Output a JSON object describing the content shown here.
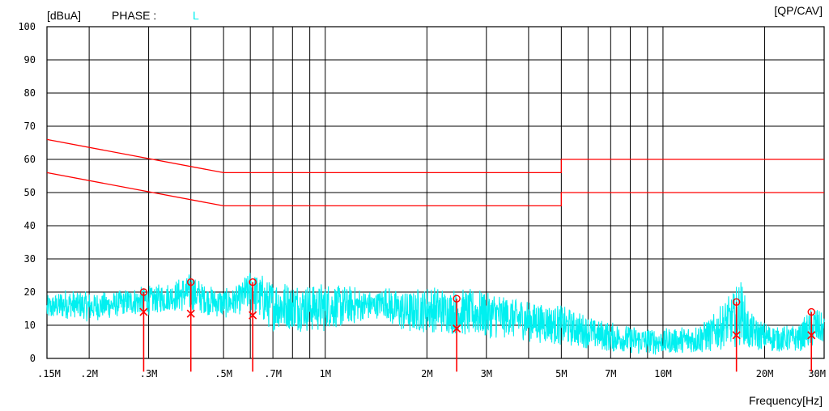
{
  "chart_data": {
    "type": "line",
    "unit_label": "[dBuA]",
    "phase_label": "PHASE :",
    "phase_value": "L",
    "detector_label": "[QP/CAV]",
    "xlabel": "Frequency[Hz]",
    "x_scale": "log",
    "xlim_mhz": [
      0.15,
      30
    ],
    "ylim": [
      0,
      100
    ],
    "grid": true,
    "y_ticks": [
      "100",
      "90",
      "80",
      "70",
      "60",
      "50",
      "40",
      "30",
      "20",
      "10",
      "0"
    ],
    "x_tick_labels": [
      {
        "mhz": 0.15,
        "label": ".15M"
      },
      {
        "mhz": 0.2,
        "label": ".2M"
      },
      {
        "mhz": 0.3,
        "label": ".3M"
      },
      {
        "mhz": 0.5,
        "label": ".5M"
      },
      {
        "mhz": 0.7,
        "label": ".7M"
      },
      {
        "mhz": 1,
        "label": "1M"
      },
      {
        "mhz": 2,
        "label": "2M"
      },
      {
        "mhz": 3,
        "label": "3M"
      },
      {
        "mhz": 5,
        "label": "5M"
      },
      {
        "mhz": 7,
        "label": "7M"
      },
      {
        "mhz": 10,
        "label": "10M"
      },
      {
        "mhz": 20,
        "label": "20M"
      },
      {
        "mhz": 30,
        "label": "30M"
      }
    ],
    "limit_lines": [
      {
        "points": [
          [
            0.15,
            66
          ],
          [
            0.5,
            56
          ],
          [
            5,
            56
          ],
          [
            5,
            60
          ],
          [
            30,
            60
          ]
        ]
      },
      {
        "points": [
          [
            0.15,
            56
          ],
          [
            0.5,
            46
          ],
          [
            5,
            46
          ],
          [
            5,
            50
          ],
          [
            30,
            50
          ]
        ]
      }
    ],
    "spectrum_envelope": [
      [
        0.15,
        11,
        19
      ],
      [
        0.17,
        12,
        21
      ],
      [
        0.2,
        11,
        20
      ],
      [
        0.23,
        12,
        20
      ],
      [
        0.26,
        13,
        21
      ],
      [
        0.3,
        13,
        22
      ],
      [
        0.35,
        14,
        23
      ],
      [
        0.4,
        14,
        26
      ],
      [
        0.45,
        13,
        22
      ],
      [
        0.5,
        12,
        21
      ],
      [
        0.55,
        13,
        22
      ],
      [
        0.6,
        14,
        27
      ],
      [
        0.7,
        8,
        24
      ],
      [
        0.8,
        8,
        23
      ],
      [
        1.0,
        8,
        23
      ],
      [
        1.2,
        10,
        22
      ],
      [
        1.4,
        12,
        20
      ],
      [
        1.5,
        12,
        22
      ],
      [
        1.6,
        9,
        21
      ],
      [
        1.8,
        7,
        21
      ],
      [
        2.0,
        8,
        22
      ],
      [
        2.5,
        7,
        21
      ],
      [
        3.0,
        6,
        21
      ],
      [
        3.5,
        6,
        19
      ],
      [
        4.0,
        5,
        18
      ],
      [
        5.0,
        4,
        16
      ],
      [
        6.0,
        3,
        13
      ],
      [
        7.0,
        2,
        11
      ],
      [
        8.0,
        1,
        10
      ],
      [
        10.0,
        1,
        9
      ],
      [
        12.0,
        1,
        10
      ],
      [
        14.0,
        2,
        13
      ],
      [
        16.0,
        3,
        20
      ],
      [
        17.0,
        4,
        24
      ],
      [
        18.0,
        2,
        14
      ],
      [
        20.0,
        2,
        11
      ],
      [
        22.0,
        2,
        10
      ],
      [
        25.0,
        2,
        10
      ],
      [
        28.0,
        3,
        16
      ],
      [
        30.0,
        4,
        13
      ]
    ],
    "marker_color": "#ff0000",
    "trace_color": "#00f0f0",
    "markers": [
      {
        "mhz": 0.29,
        "qp": 20,
        "cav": 14
      },
      {
        "mhz": 0.4,
        "qp": 23,
        "cav": 13.5
      },
      {
        "mhz": 0.61,
        "qp": 23,
        "cav": 13
      },
      {
        "mhz": 2.45,
        "qp": 18,
        "cav": 9
      },
      {
        "mhz": 16.5,
        "qp": 17,
        "cav": 7
      },
      {
        "mhz": 27.5,
        "qp": 14,
        "cav": 7
      }
    ]
  }
}
